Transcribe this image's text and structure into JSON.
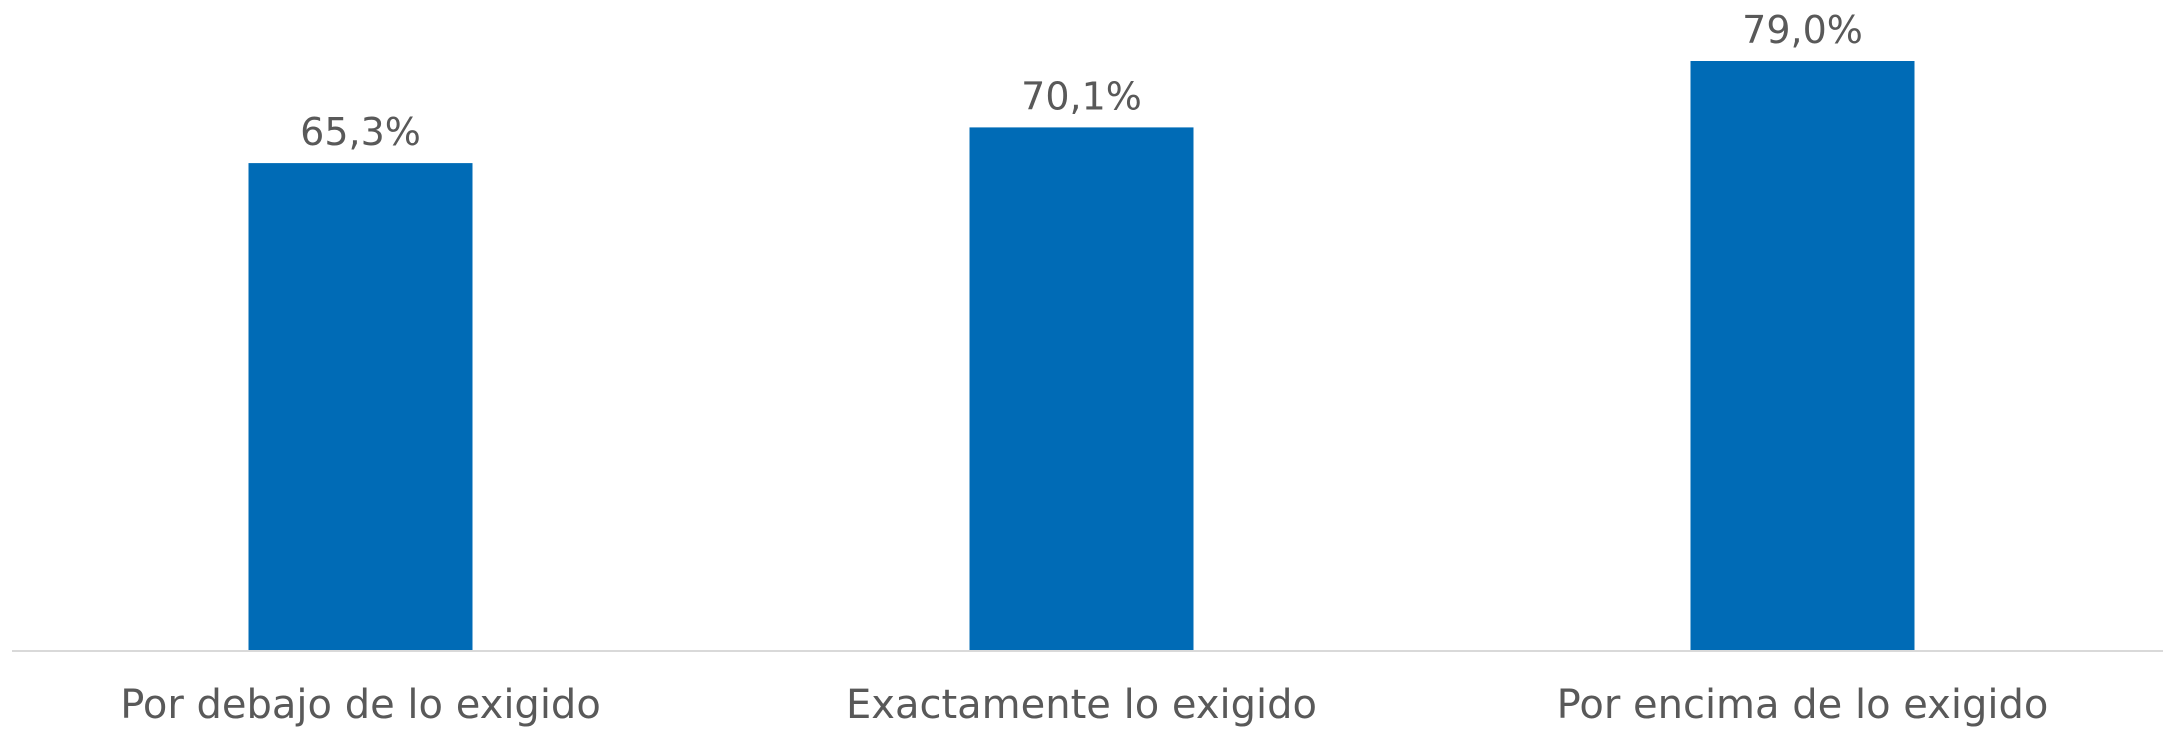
{
  "chart_data": {
    "type": "bar",
    "categories": [
      "Por debajo de lo exigido",
      "Exactamente lo exigido",
      "Por encima de lo exigido"
    ],
    "values": [
      65.3,
      70.1,
      79.0
    ],
    "value_labels": [
      "65,3%",
      "70,1%",
      "79,0%"
    ],
    "title": "",
    "xlabel": "",
    "ylabel": "",
    "ylim": [
      0,
      80
    ],
    "grid": false,
    "legend": "none",
    "colors": {
      "bar": "#006bb6",
      "axis": "#d9d9d9",
      "text": "#595959"
    }
  }
}
